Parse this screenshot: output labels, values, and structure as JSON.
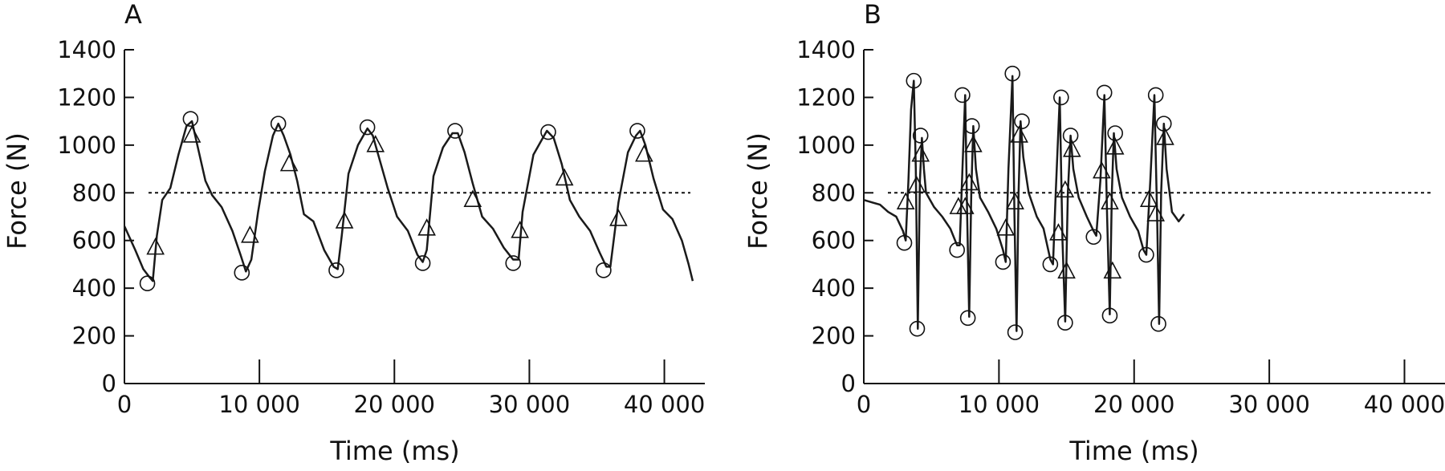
{
  "chart_data": [
    {
      "type": "line",
      "panel_label": "A",
      "xlabel": "Time (ms)",
      "ylabel": "Force (N)",
      "xlim": [
        0,
        43000
      ],
      "ylim": [
        0,
        1400
      ],
      "x_ticks": [
        0,
        10000,
        20000,
        30000,
        40000
      ],
      "x_tick_labels": [
        "0",
        "10 000",
        "20 000",
        "30 000",
        "40 000"
      ],
      "y_ticks": [
        0,
        200,
        400,
        600,
        800,
        1000,
        1200,
        1400
      ],
      "y_tick_labels": [
        "0",
        "200",
        "400",
        "600",
        "800",
        "1000",
        "1200",
        "1400"
      ],
      "reference_line": 800,
      "series": [
        {
          "points": [
            [
              0,
              660
            ],
            [
              800,
              560
            ],
            [
              1400,
              480
            ],
            [
              1800,
              450
            ],
            [
              2100,
              430
            ],
            [
              2400,
              620
            ],
            [
              2800,
              770
            ],
            [
              3400,
              820
            ],
            [
              4000,
              960
            ],
            [
              4600,
              1080
            ],
            [
              5000,
              1100
            ],
            [
              5400,
              1000
            ],
            [
              6000,
              850
            ],
            [
              6500,
              790
            ],
            [
              7200,
              740
            ],
            [
              8000,
              640
            ],
            [
              8600,
              540
            ],
            [
              9000,
              470
            ],
            [
              9400,
              520
            ],
            [
              9900,
              720
            ],
            [
              10400,
              890
            ],
            [
              11000,
              1040
            ],
            [
              11400,
              1090
            ],
            [
              11800,
              1040
            ],
            [
              12300,
              960
            ],
            [
              12800,
              850
            ],
            [
              13300,
              710
            ],
            [
              14000,
              680
            ],
            [
              14800,
              560
            ],
            [
              15500,
              490
            ],
            [
              15800,
              480
            ],
            [
              16100,
              620
            ],
            [
              16600,
              880
            ],
            [
              17300,
              1000
            ],
            [
              18000,
              1070
            ],
            [
              18400,
              1040
            ],
            [
              18900,
              940
            ],
            [
              19500,
              820
            ],
            [
              20200,
              700
            ],
            [
              21000,
              640
            ],
            [
              21700,
              540
            ],
            [
              22100,
              510
            ],
            [
              22400,
              560
            ],
            [
              22900,
              870
            ],
            [
              23600,
              990
            ],
            [
              24300,
              1050
            ],
            [
              24700,
              1050
            ],
            [
              25200,
              970
            ],
            [
              25800,
              840
            ],
            [
              26500,
              700
            ],
            [
              27300,
              650
            ],
            [
              28100,
              570
            ],
            [
              28800,
              520
            ],
            [
              29200,
              520
            ],
            [
              29500,
              720
            ],
            [
              30300,
              960
            ],
            [
              31000,
              1030
            ],
            [
              31300,
              1060
            ],
            [
              31800,
              1030
            ],
            [
              32400,
              920
            ],
            [
              33000,
              770
            ],
            [
              33700,
              700
            ],
            [
              34500,
              640
            ],
            [
              35200,
              550
            ],
            [
              35700,
              490
            ],
            [
              36000,
              490
            ],
            [
              36600,
              760
            ],
            [
              37300,
              970
            ],
            [
              37900,
              1040
            ],
            [
              38200,
              1060
            ],
            [
              38600,
              1000
            ],
            [
              39200,
              860
            ],
            [
              39900,
              730
            ],
            [
              40600,
              690
            ],
            [
              41300,
              600
            ],
            [
              41800,
              500
            ],
            [
              42100,
              430
            ]
          ]
        }
      ],
      "peak_markers": [
        [
          1700,
          420
        ],
        [
          4900,
          1110
        ],
        [
          8700,
          465
        ],
        [
          11400,
          1090
        ],
        [
          15700,
          475
        ],
        [
          18000,
          1075
        ],
        [
          22100,
          505
        ],
        [
          24500,
          1060
        ],
        [
          28800,
          505
        ],
        [
          31400,
          1055
        ],
        [
          35500,
          475
        ],
        [
          38000,
          1060
        ]
      ],
      "triangle_markers": [
        [
          2300,
          570
        ],
        [
          5000,
          1040
        ],
        [
          9300,
          620
        ],
        [
          12200,
          920
        ],
        [
          16300,
          680
        ],
        [
          18600,
          1000
        ],
        [
          22400,
          650
        ],
        [
          25800,
          770
        ],
        [
          29300,
          640
        ],
        [
          32600,
          860
        ],
        [
          36600,
          690
        ],
        [
          38500,
          960
        ]
      ]
    },
    {
      "type": "line",
      "panel_label": "B",
      "xlabel": "Time (ms)",
      "ylabel": "Force (N)",
      "xlim": [
        0,
        43000
      ],
      "ylim": [
        0,
        1400
      ],
      "x_ticks": [
        0,
        10000,
        20000,
        30000,
        40000
      ],
      "x_tick_labels": [
        "0",
        "10 000",
        "20 000",
        "30 000",
        "40 000"
      ],
      "y_ticks": [
        0,
        200,
        400,
        600,
        800,
        1000,
        1200,
        1400
      ],
      "y_tick_labels": [
        "0",
        "200",
        "400",
        "600",
        "800",
        "1000",
        "1200",
        "1400"
      ],
      "reference_line": 800,
      "series": [
        {
          "points": [
            [
              0,
              770
            ],
            [
              600,
              760
            ],
            [
              1200,
              750
            ],
            [
              1800,
              720
            ],
            [
              2400,
              700
            ],
            [
              2900,
              640
            ],
            [
              3100,
              600
            ],
            [
              3300,
              850
            ],
            [
              3500,
              1150
            ],
            [
              3700,
              1270
            ],
            [
              3850,
              900
            ],
            [
              4000,
              230
            ],
            [
              4150,
              850
            ],
            [
              4300,
              1030
            ],
            [
              4450,
              900
            ],
            [
              4600,
              800
            ],
            [
              5200,
              740
            ],
            [
              5800,
              700
            ],
            [
              6400,
              650
            ],
            [
              6900,
              580
            ],
            [
              7100,
              580
            ],
            [
              7300,
              900
            ],
            [
              7500,
              1210
            ],
            [
              7650,
              700
            ],
            [
              7800,
              280
            ],
            [
              7950,
              800
            ],
            [
              8100,
              1080
            ],
            [
              8300,
              900
            ],
            [
              8600,
              780
            ],
            [
              9200,
              720
            ],
            [
              9800,
              650
            ],
            [
              10300,
              560
            ],
            [
              10500,
              510
            ],
            [
              10700,
              900
            ],
            [
              11000,
              1290
            ],
            [
              11150,
              700
            ],
            [
              11300,
              220
            ],
            [
              11450,
              800
            ],
            [
              11600,
              1100
            ],
            [
              11800,
              950
            ],
            [
              12200,
              800
            ],
            [
              12800,
              700
            ],
            [
              13300,
              650
            ],
            [
              13800,
              520
            ],
            [
              14000,
              500
            ],
            [
              14200,
              800
            ],
            [
              14500,
              1200
            ],
            [
              14700,
              600
            ],
            [
              14900,
              260
            ],
            [
              15100,
              800
            ],
            [
              15300,
              1040
            ],
            [
              15500,
              900
            ],
            [
              15900,
              780
            ],
            [
              16500,
              700
            ],
            [
              17000,
              640
            ],
            [
              17200,
              620
            ],
            [
              17500,
              850
            ],
            [
              17800,
              1210
            ],
            [
              18000,
              700
            ],
            [
              18200,
              290
            ],
            [
              18350,
              800
            ],
            [
              18500,
              1050
            ],
            [
              18700,
              900
            ],
            [
              19100,
              780
            ],
            [
              19700,
              700
            ],
            [
              20300,
              640
            ],
            [
              20700,
              560
            ],
            [
              20900,
              540
            ],
            [
              21200,
              850
            ],
            [
              21500,
              1210
            ],
            [
              21700,
              700
            ],
            [
              21850,
              250
            ],
            [
              22000,
              800
            ],
            [
              22200,
              1090
            ],
            [
              22400,
              900
            ],
            [
              22800,
              720
            ],
            [
              23300,
              680
            ],
            [
              23700,
              710
            ]
          ]
        }
      ],
      "peak_markers": [
        [
          3000,
          590
        ],
        [
          3700,
          1270
        ],
        [
          3950,
          230
        ],
        [
          4200,
          1040
        ],
        [
          6900,
          560
        ],
        [
          7300,
          1210
        ],
        [
          7700,
          275
        ],
        [
          8000,
          1080
        ],
        [
          10300,
          510
        ],
        [
          11000,
          1300
        ],
        [
          11200,
          215
        ],
        [
          11700,
          1100
        ],
        [
          13800,
          500
        ],
        [
          14600,
          1200
        ],
        [
          14900,
          255
        ],
        [
          15300,
          1040
        ],
        [
          17000,
          615
        ],
        [
          17800,
          1220
        ],
        [
          18200,
          285
        ],
        [
          18600,
          1050
        ],
        [
          20900,
          540
        ],
        [
          21600,
          1210
        ],
        [
          21800,
          250
        ],
        [
          22200,
          1090
        ]
      ],
      "triangle_markers": [
        [
          3100,
          760
        ],
        [
          3900,
          830
        ],
        [
          4200,
          960
        ],
        [
          7000,
          740
        ],
        [
          7500,
          740
        ],
        [
          7800,
          840
        ],
        [
          8100,
          1000
        ],
        [
          10500,
          650
        ],
        [
          11200,
          760
        ],
        [
          11500,
          1040
        ],
        [
          14400,
          630
        ],
        [
          14900,
          810
        ],
        [
          15000,
          470
        ],
        [
          15400,
          980
        ],
        [
          17600,
          890
        ],
        [
          18200,
          760
        ],
        [
          18400,
          470
        ],
        [
          18600,
          990
        ],
        [
          21100,
          770
        ],
        [
          21600,
          710
        ],
        [
          22300,
          1030
        ]
      ]
    }
  ]
}
